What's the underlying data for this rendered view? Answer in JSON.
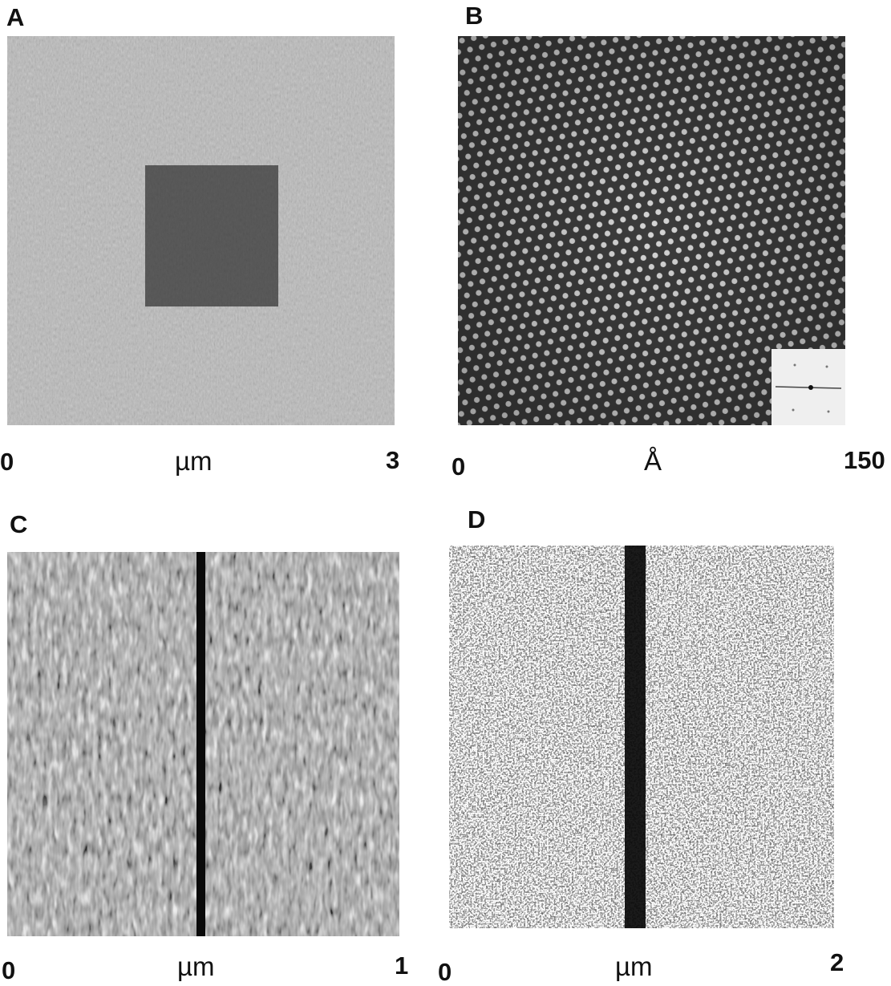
{
  "panels": [
    {
      "letter": "A",
      "scale_start": "0",
      "scale_unit": "µm",
      "scale_end": "3",
      "description": "AFM topograph with darker square region"
    },
    {
      "letter": "B",
      "scale_start": "0",
      "scale_unit": "Å",
      "scale_end": "150",
      "description": "hexagonal atomic lattice with inset diffraction pattern"
    },
    {
      "letter": "C",
      "scale_start": "0",
      "scale_unit": "µm",
      "scale_end": "1",
      "description": "textured surface with vertical dark line"
    },
    {
      "letter": "D",
      "scale_start": "0",
      "scale_unit": "µm",
      "scale_end": "2",
      "description": "speckled surface with vertical dark band"
    }
  ]
}
